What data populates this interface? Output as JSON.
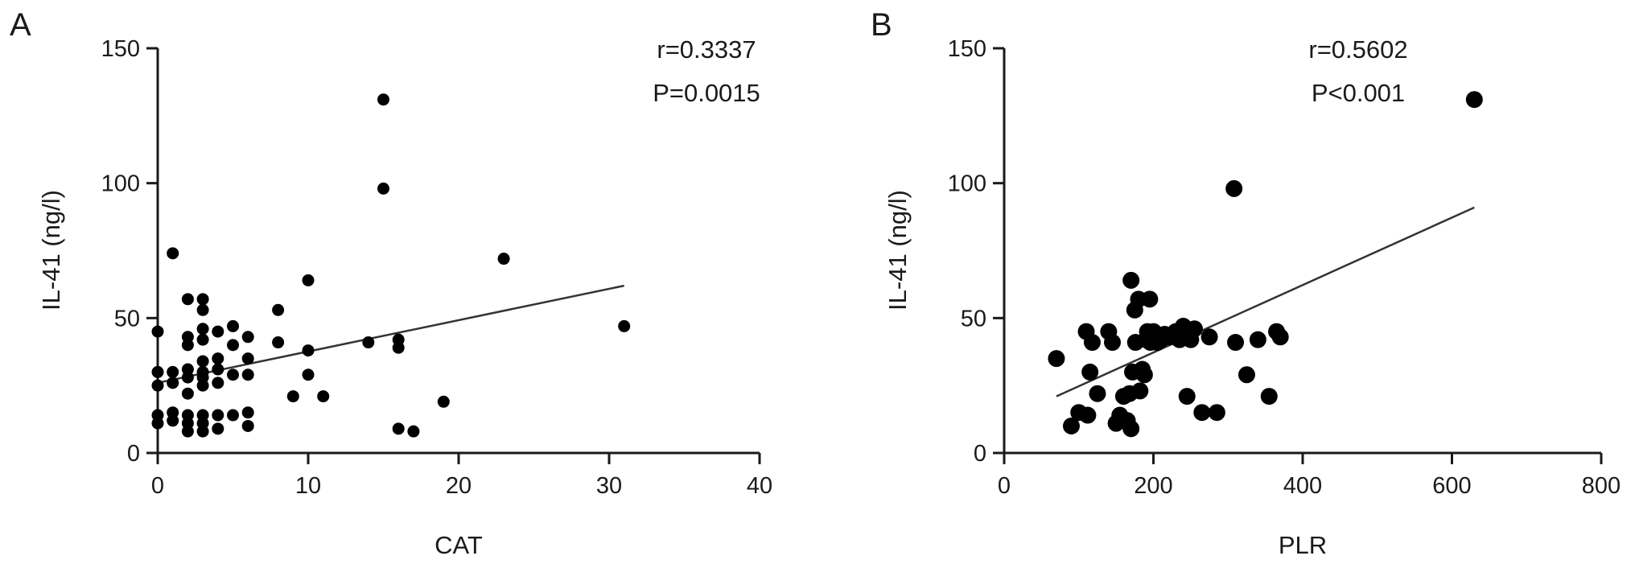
{
  "chart_data": [
    {
      "type": "scatter",
      "panel_label": "A",
      "title": "",
      "xlabel": "CAT",
      "ylabel": "IL-41 (ng/l)",
      "xlim": [
        0,
        40
      ],
      "ylim": [
        0,
        150
      ],
      "xticks": [
        0,
        10,
        20,
        30,
        40
      ],
      "yticks": [
        0,
        50,
        100,
        150
      ],
      "grid": false,
      "annotations": [
        "r=0.3337",
        "P=0.0015"
      ],
      "regression_line": {
        "x": [
          0,
          31
        ],
        "y": [
          26,
          62
        ]
      },
      "points": [
        [
          0,
          45
        ],
        [
          0,
          30
        ],
        [
          0,
          25
        ],
        [
          0,
          14
        ],
        [
          0,
          11
        ],
        [
          1,
          74
        ],
        [
          1,
          30
        ],
        [
          1,
          26
        ],
        [
          1,
          15
        ],
        [
          1,
          12
        ],
        [
          2,
          57
        ],
        [
          2,
          43
        ],
        [
          2,
          40
        ],
        [
          2,
          31
        ],
        [
          2,
          28
        ],
        [
          2,
          22
        ],
        [
          2,
          14
        ],
        [
          2,
          11
        ],
        [
          2,
          8
        ],
        [
          3,
          57
        ],
        [
          3,
          53
        ],
        [
          3,
          46
        ],
        [
          3,
          42
        ],
        [
          3,
          34
        ],
        [
          3,
          30
        ],
        [
          3,
          28
        ],
        [
          3,
          25
        ],
        [
          3,
          14
        ],
        [
          3,
          11
        ],
        [
          3,
          8
        ],
        [
          4,
          45
        ],
        [
          4,
          35
        ],
        [
          4,
          31
        ],
        [
          4,
          26
        ],
        [
          4,
          14
        ],
        [
          4,
          9
        ],
        [
          5,
          47
        ],
        [
          5,
          40
        ],
        [
          5,
          29
        ],
        [
          5,
          14
        ],
        [
          6,
          43
        ],
        [
          6,
          35
        ],
        [
          6,
          29
        ],
        [
          6,
          15
        ],
        [
          6,
          10
        ],
        [
          8,
          53
        ],
        [
          8,
          41
        ],
        [
          9,
          21
        ],
        [
          10,
          64
        ],
        [
          10,
          38
        ],
        [
          10,
          29
        ],
        [
          11,
          21
        ],
        [
          14,
          41
        ],
        [
          15,
          131
        ],
        [
          15,
          98
        ],
        [
          16,
          42
        ],
        [
          16,
          39
        ],
        [
          16,
          9
        ],
        [
          17,
          8
        ],
        [
          19,
          19
        ],
        [
          23,
          72
        ],
        [
          31,
          47
        ]
      ]
    },
    {
      "type": "scatter",
      "panel_label": "B",
      "title": "",
      "xlabel": "PLR",
      "ylabel": "IL-41 (ng/l)",
      "xlim": [
        0,
        800
      ],
      "ylim": [
        0,
        150
      ],
      "xticks": [
        0,
        200,
        400,
        600,
        800
      ],
      "yticks": [
        0,
        50,
        100,
        150
      ],
      "grid": false,
      "annotations": [
        "r=0.5602",
        "P<0.001"
      ],
      "regression_line": {
        "x": [
          70,
          630
        ],
        "y": [
          21,
          91
        ]
      },
      "points": [
        [
          70,
          35
        ],
        [
          90,
          10
        ],
        [
          100,
          15
        ],
        [
          110,
          45
        ],
        [
          112,
          14
        ],
        [
          115,
          30
        ],
        [
          118,
          41
        ],
        [
          125,
          22
        ],
        [
          140,
          45
        ],
        [
          145,
          41
        ],
        [
          150,
          11
        ],
        [
          155,
          14
        ],
        [
          160,
          21
        ],
        [
          165,
          12
        ],
        [
          168,
          22
        ],
        [
          170,
          64
        ],
        [
          170,
          9
        ],
        [
          172,
          30
        ],
        [
          175,
          53
        ],
        [
          176,
          41
        ],
        [
          180,
          57
        ],
        [
          182,
          23
        ],
        [
          185,
          31
        ],
        [
          188,
          29
        ],
        [
          190,
          42
        ],
        [
          192,
          45
        ],
        [
          195,
          57
        ],
        [
          196,
          41
        ],
        [
          200,
          45
        ],
        [
          205,
          41
        ],
        [
          210,
          42
        ],
        [
          215,
          44
        ],
        [
          222,
          43
        ],
        [
          230,
          45
        ],
        [
          235,
          42
        ],
        [
          240,
          47
        ],
        [
          245,
          21
        ],
        [
          248,
          44
        ],
        [
          250,
          42
        ],
        [
          255,
          46
        ],
        [
          265,
          15
        ],
        [
          275,
          43
        ],
        [
          285,
          15
        ],
        [
          310,
          41
        ],
        [
          308,
          98
        ],
        [
          325,
          29
        ],
        [
          340,
          42
        ],
        [
          355,
          21
        ],
        [
          365,
          45
        ],
        [
          370,
          43
        ],
        [
          630,
          131
        ]
      ]
    }
  ]
}
